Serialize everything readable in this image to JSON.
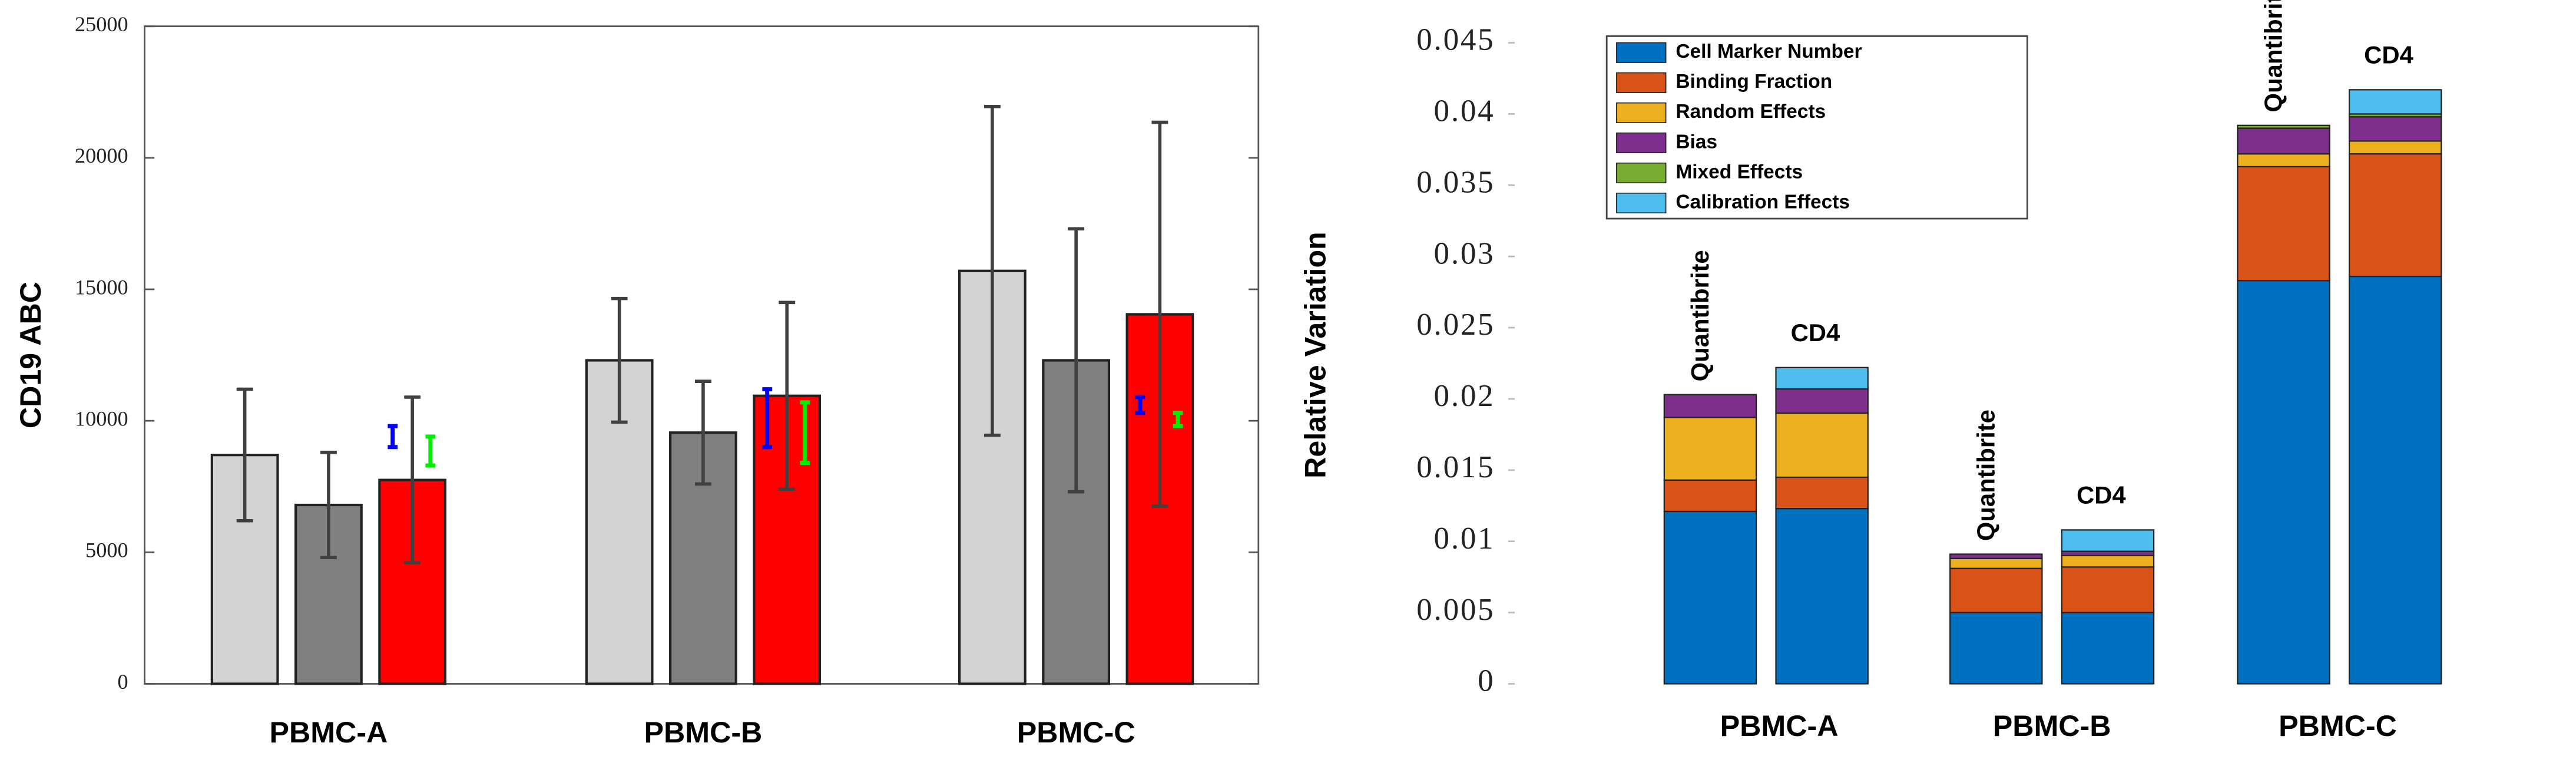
{
  "chart_data": [
    {
      "type": "bar",
      "ylabel": "CD19 ABC",
      "categories": [
        "PBMC-A",
        "PBMC-B",
        "PBMC-C"
      ],
      "ylim": [
        0,
        25000
      ],
      "yticks": [
        0,
        5000,
        10000,
        15000,
        20000,
        25000
      ],
      "series": [
        {
          "color": "#d3d3d3",
          "error_color": "#404040",
          "bar": true,
          "values": [
            8700,
            12300,
            15700
          ],
          "errors": [
            2500,
            2350,
            6250
          ]
        },
        {
          "color": "#808080",
          "error_color": "#404040",
          "bar": true,
          "values": [
            6800,
            9550,
            12300
          ],
          "errors": [
            2000,
            1950,
            5000
          ]
        },
        {
          "color": "#ff0000",
          "error_color": "#404040",
          "bar": true,
          "values": [
            7750,
            10950,
            14050
          ],
          "errors": [
            3150,
            3550,
            7300
          ]
        },
        {
          "color": "#0000ff",
          "error_color": "#0000ff",
          "bar": false,
          "values": [
            9400,
            10100,
            10600
          ],
          "errors": [
            400,
            1100,
            300
          ]
        },
        {
          "color": "#00ee00",
          "error_color": "#00ee00",
          "bar": false,
          "values": [
            8850,
            9550,
            10050
          ],
          "errors": [
            550,
            1150,
            250
          ]
        }
      ]
    },
    {
      "type": "stacked_bar",
      "ylabel": "Relative Variation",
      "categories": [
        "Quantibrite",
        "CD4",
        "Quantibrite",
        "CD4",
        "Quantibrite",
        "CD4"
      ],
      "groups": [
        "PBMC-A",
        "PBMC-B",
        "PBMC-C"
      ],
      "ylim": [
        0,
        0.045
      ],
      "yticks": [
        0,
        0.005,
        0.01,
        0.015,
        0.02,
        0.025,
        0.03,
        0.035,
        0.04,
        0.045
      ],
      "legend": "upper left",
      "series": [
        {
          "name": "Cell Marker Number",
          "color": "#0070c0",
          "values": [
            0.0121,
            0.0123,
            0.005,
            0.005,
            0.0283,
            0.0286
          ]
        },
        {
          "name": "Binding Fraction",
          "color": "#d95319",
          "values": [
            0.0022,
            0.0022,
            0.0031,
            0.0032,
            0.008,
            0.0086
          ]
        },
        {
          "name": "Random Effects",
          "color": "#edb120",
          "values": [
            0.0044,
            0.0045,
            0.0007,
            0.0008,
            0.0009,
            0.0009
          ]
        },
        {
          "name": "Bias",
          "color": "#7e2f8e",
          "values": [
            0.0016,
            0.0017,
            0.0003,
            0.0003,
            0.0018,
            0.0017
          ]
        },
        {
          "name": "Mixed Effects",
          "color": "#77ac30",
          "values": [
            0,
            0,
            0,
            0,
            0.0002,
            0.0002
          ]
        },
        {
          "name": "Calibration Effects",
          "color": "#4dbeee",
          "values": [
            0,
            0.0015,
            0,
            0.0015,
            0,
            0.0017
          ]
        }
      ]
    }
  ]
}
